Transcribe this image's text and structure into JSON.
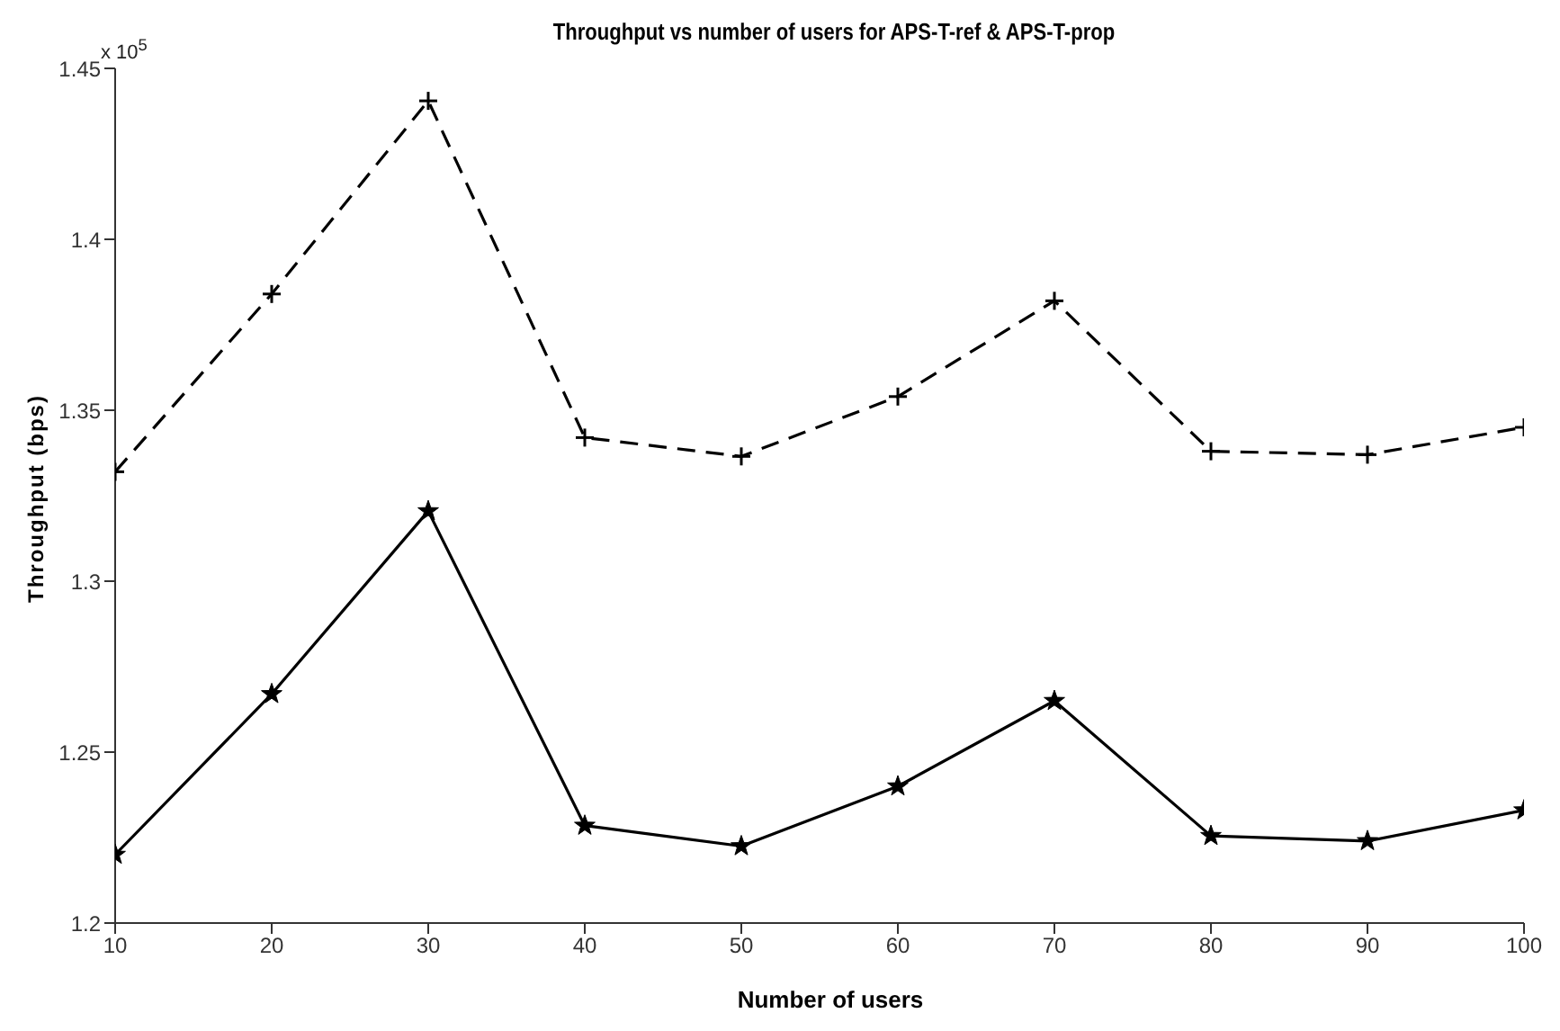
{
  "chart_data": {
    "type": "line",
    "title": "Throughput vs number of users for APS-T-ref & APS-T-prop",
    "xlabel": "Number of users",
    "ylabel": "Throughput (bps)",
    "annotations": [
      "x 10$^{5}$"
    ],
    "x": [
      10,
      20,
      30,
      40,
      50,
      60,
      70,
      80,
      90,
      100
    ],
    "series": [
      {
        "color": "#000000",
        "line_style": "dashed",
        "marker": "cross",
        "values": [
          1.332,
          1.384,
          1.4405,
          1.342,
          1.3365,
          1.354,
          1.382,
          1.338,
          1.337,
          1.345
        ]
      },
      {
        "color": "#000000",
        "line_style": "solid",
        "marker": "star",
        "values": [
          1.22,
          1.267,
          1.3205,
          1.2285,
          1.2225,
          1.24,
          1.265,
          1.2255,
          1.224,
          1.233
        ]
      }
    ],
    "xlim": [
      10,
      100
    ],
    "xticks": [
      10,
      20,
      30,
      40,
      50,
      60,
      70,
      80,
      90,
      100
    ],
    "ylim": [
      1.2,
      1.45
    ],
    "yticks": [
      1.2,
      1.25,
      1.3,
      1.35,
      1.4,
      1.45
    ],
    "grid": false,
    "legend": false
  }
}
